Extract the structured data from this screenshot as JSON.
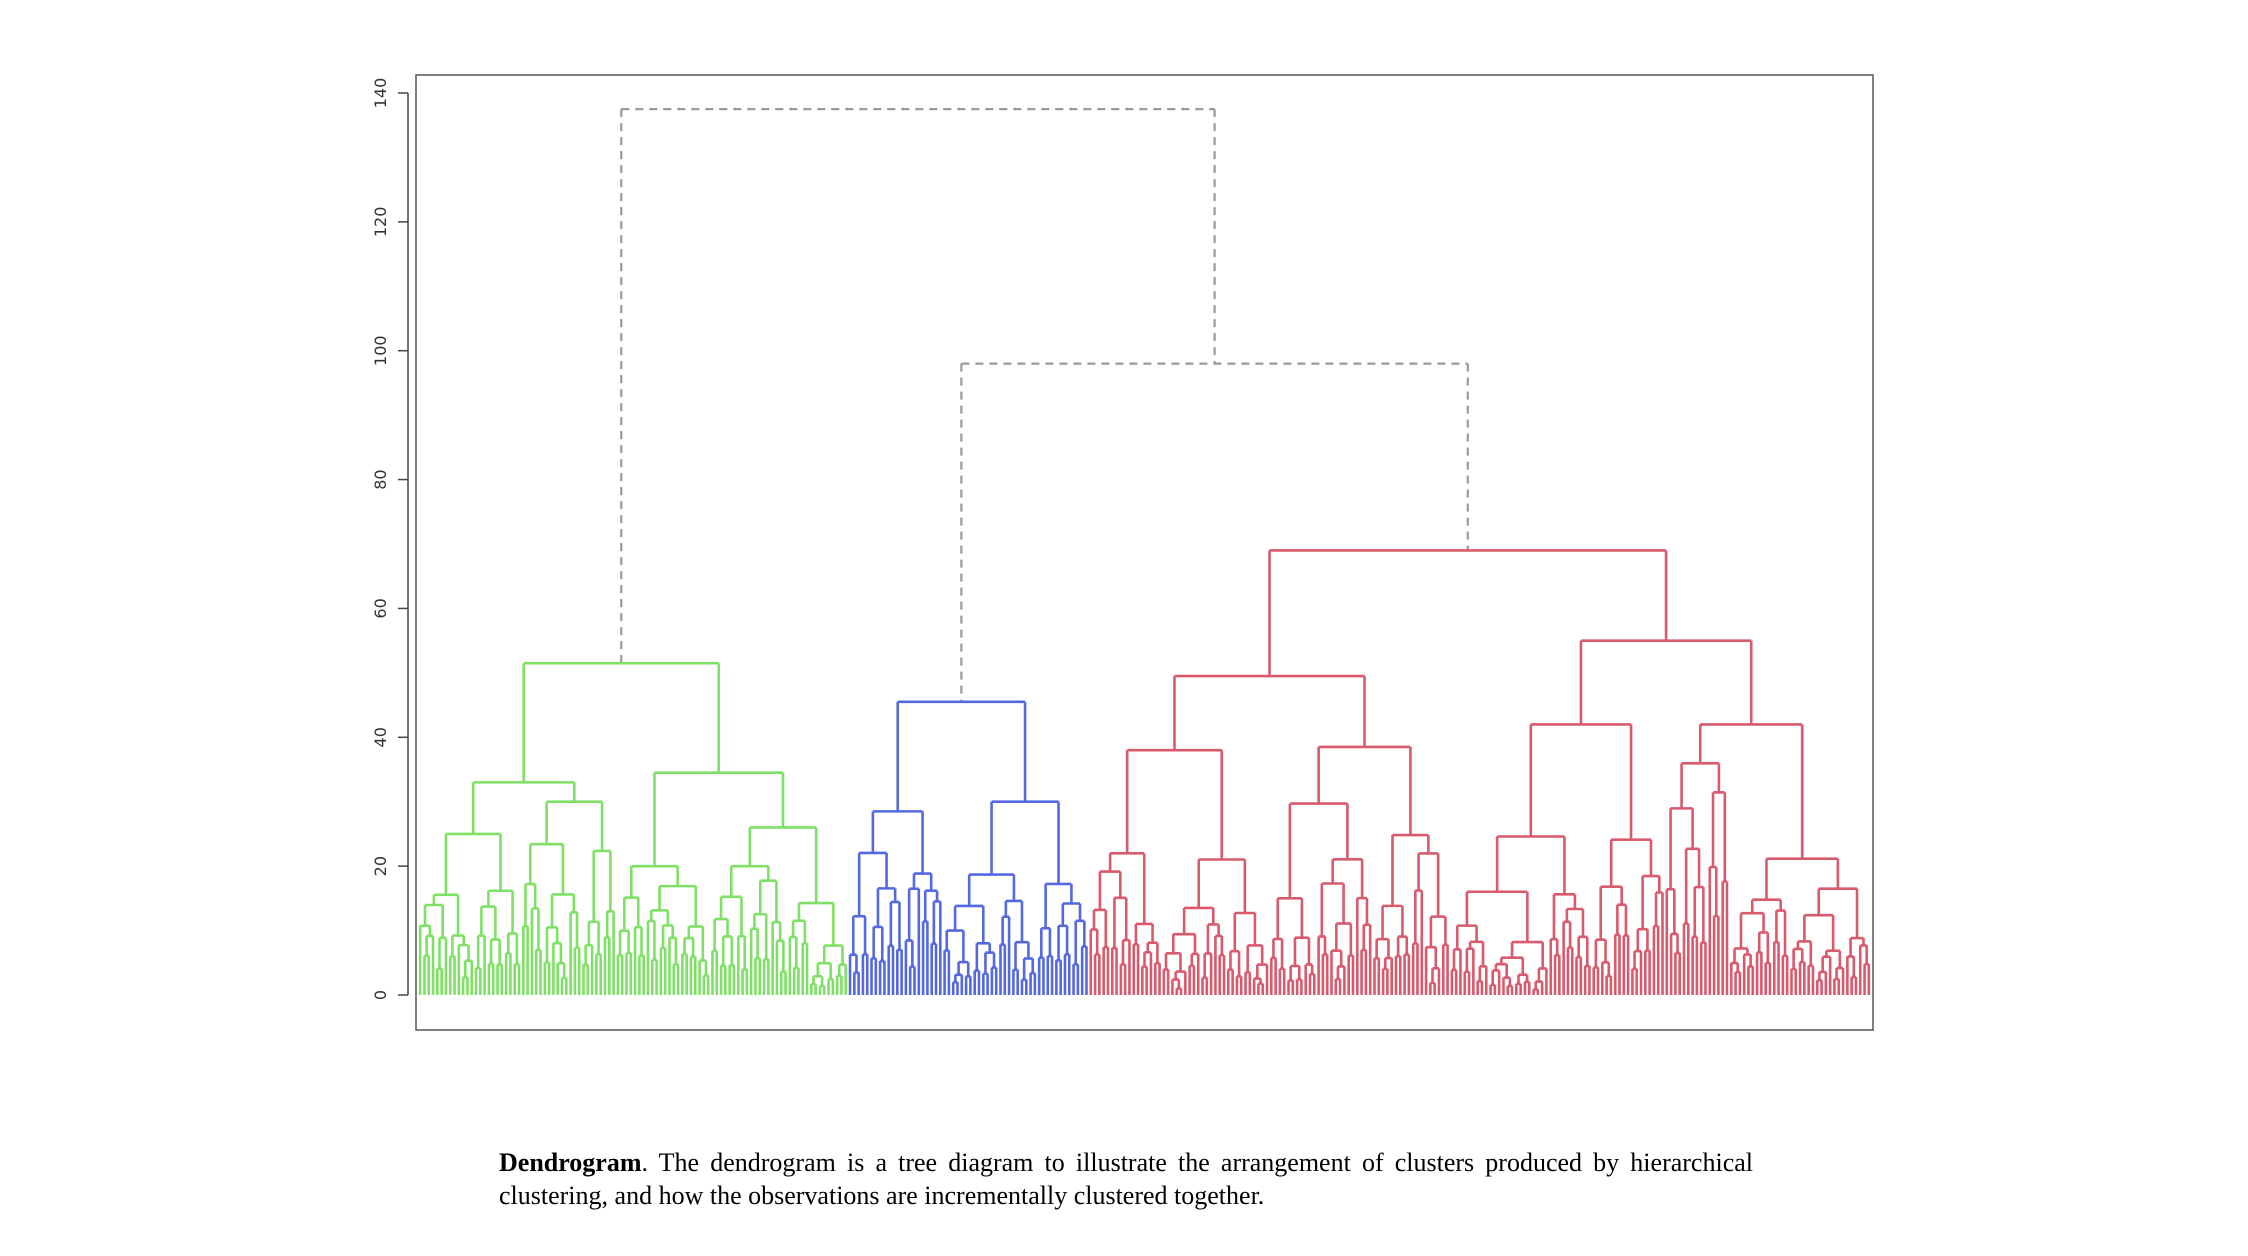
{
  "chart_data": {
    "type": "dendrogram",
    "ylim": [
      0,
      140
    ],
    "yticks": [
      0,
      20,
      40,
      60,
      80,
      100,
      120,
      140
    ],
    "grid": false,
    "colors": {
      "green": "#7fe066",
      "blue": "#5468e0",
      "red": "#d85a6c",
      "upper": "#999999"
    },
    "tree": {
      "h": 137.5,
      "color": "upper",
      "dashed": true,
      "children": [
        {
          "h": 51.5,
          "color": "green",
          "children": [
            {
              "h": 33,
              "color": "green",
              "children": [
                {
                  "h": 25,
                  "n": 24,
                  "color": "green"
                },
                {
                  "h": 30,
                  "n": 22,
                  "color": "green"
                }
              ]
            },
            {
              "h": 34.5,
              "color": "green",
              "children": [
                {
                  "h": 20,
                  "n": 22,
                  "color": "green"
                },
                {
                  "h": 26,
                  "n": 32,
                  "color": "green"
                }
              ]
            }
          ]
        },
        {
          "h": 98,
          "color": "upper",
          "dashed": true,
          "children": [
            {
              "h": 45.5,
              "color": "blue",
              "children": [
                {
                  "h": 28.5,
                  "n": 22,
                  "color": "blue"
                },
                {
                  "h": 30,
                  "n": 34,
                  "color": "blue"
                }
              ]
            },
            {
              "h": 69,
              "color": "red",
              "children": [
                {
                  "h": 49.5,
                  "color": "red",
                  "children": [
                    {
                      "h": 38,
                      "n": 42,
                      "color": "red"
                    },
                    {
                      "h": 38.5,
                      "n": 42,
                      "color": "red"
                    }
                  ]
                },
                {
                  "h": 55,
                  "color": "red",
                  "children": [
                    {
                      "h": 42,
                      "n": 50,
                      "color": "red"
                    },
                    {
                      "h": 42,
                      "n": 48,
                      "color": "red"
                    }
                  ]
                }
              ]
            }
          ]
        }
      ]
    }
  },
  "caption": {
    "bold": "Dendrogram",
    "text": ". The dendrogram is a tree diagram to illustrate the arrangement of clusters produced by hierarchical clustering, and how the observations are incrementally clustered together."
  }
}
